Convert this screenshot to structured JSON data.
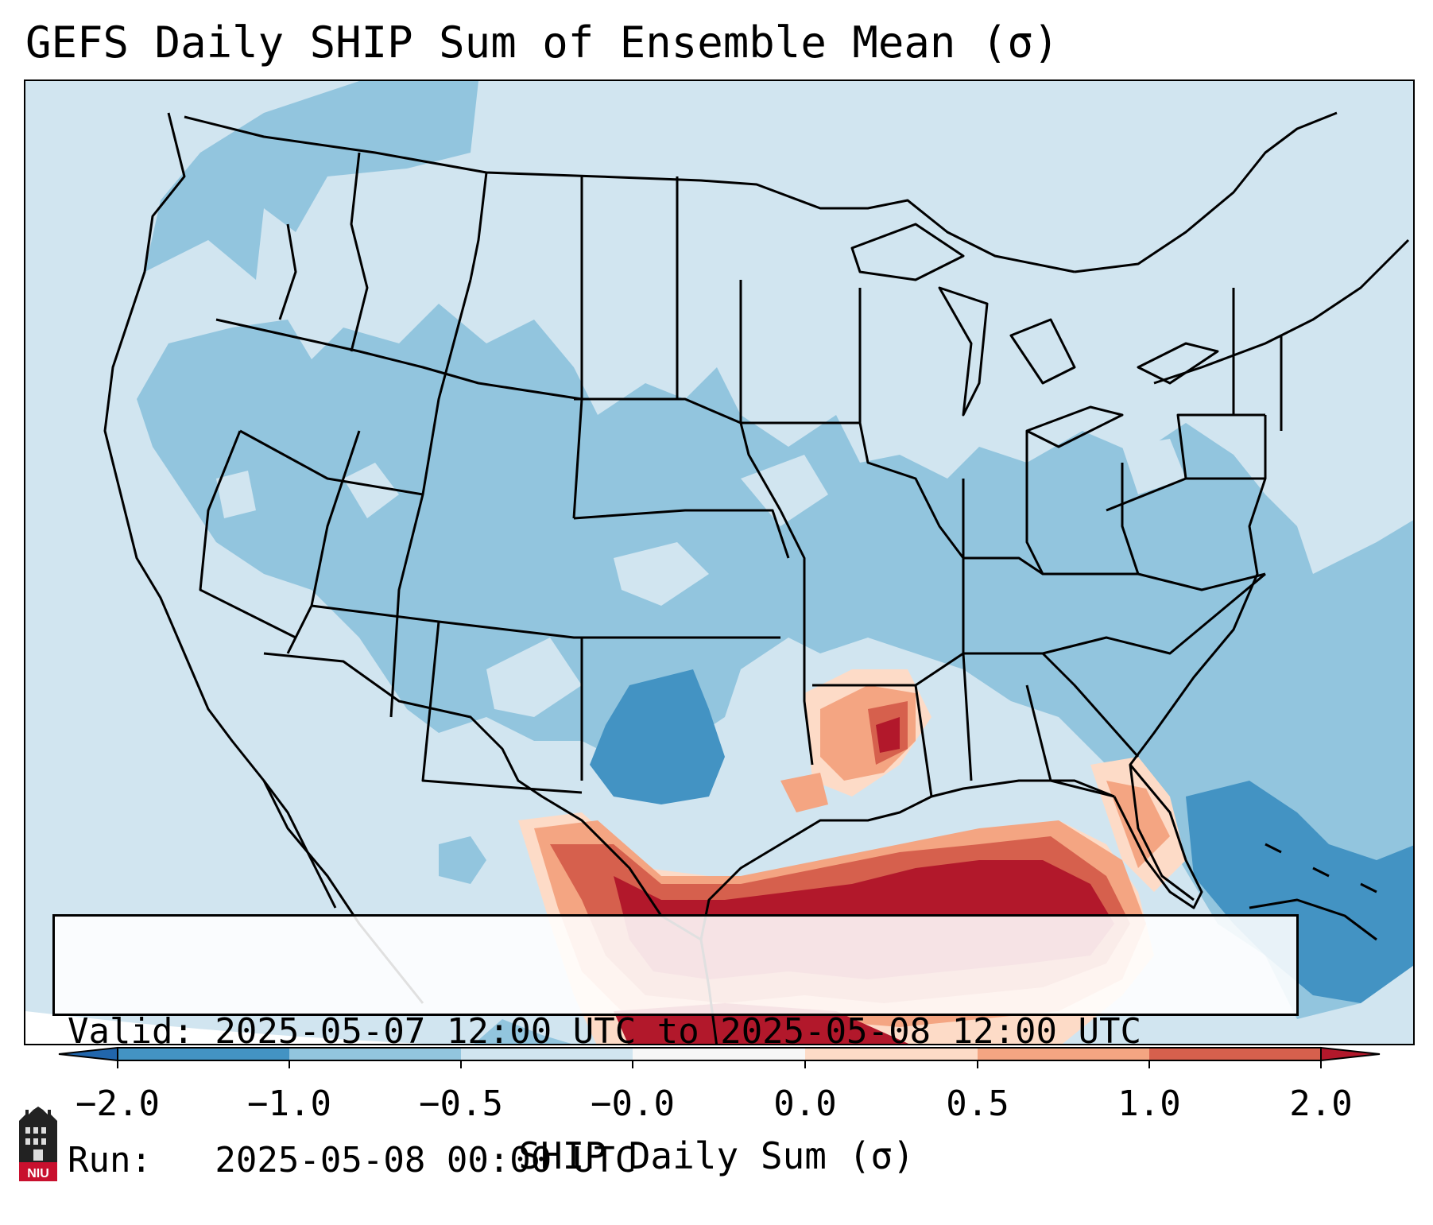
{
  "title": "GEFS Daily SHIP Sum of Ensemble Mean (σ)",
  "info": {
    "valid_line": "Valid: 2025-05-07 12:00 UTC to 2025-05-08 12:00 UTC",
    "run_line": "Run:   2025-05-08 00:00 UTC"
  },
  "colorbar": {
    "label": "SHIP Daily Sum (σ)",
    "ticks": [
      "−2.0",
      "−1.0",
      "−0.5",
      "−0.0",
      "0.0",
      "0.5",
      "1.0",
      "2.0"
    ],
    "colors": [
      "#4393c3",
      "#92c5de",
      "#d1e5f0",
      "#f7f7f7",
      "#fddbc7",
      "#f4a582",
      "#d6604d",
      "#b2182b"
    ],
    "extend_low_color": "#2166ac",
    "extend_high_color": "#b2182b"
  },
  "map": {
    "background_color": "#d1e5f0",
    "outside_domain_color": "#ffffff",
    "regions": [
      "below-normal-west",
      "below-normal-central",
      "below-normal-southeast",
      "above-normal-gulf",
      "above-normal-mississippi-valley",
      "above-normal-florida"
    ]
  },
  "logo": {
    "text": "NIU"
  }
}
